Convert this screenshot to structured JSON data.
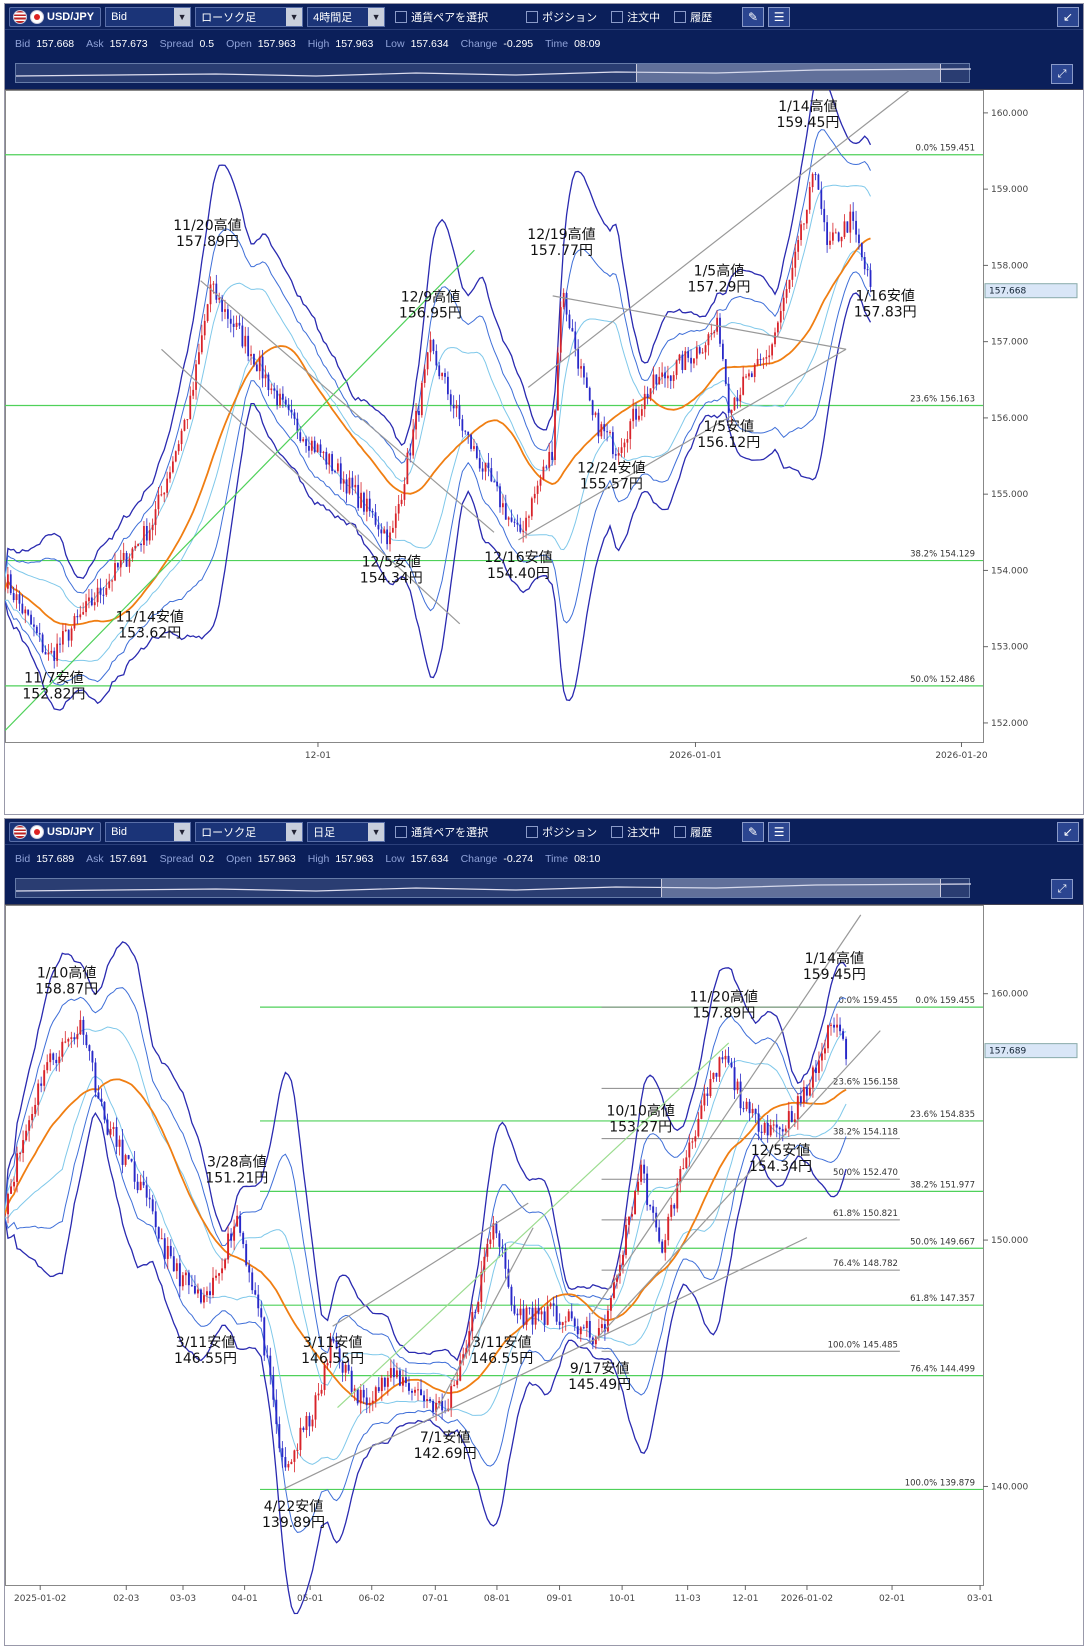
{
  "panels": [
    {
      "symbol": "USD/JPY",
      "price_type": "Bid",
      "candle_type": "ローソク足",
      "timeframe": "4時間足",
      "pair_select": "通貨ペアを選択",
      "checks": [
        "ポジション",
        "注文中",
        "履歴"
      ],
      "quote": {
        "bid_l": "Bid",
        "bid": "157.668",
        "ask_l": "Ask",
        "ask": "157.673",
        "spread_l": "Spread",
        "spread": "0.5",
        "open_l": "Open",
        "open": "157.963",
        "high_l": "High",
        "high": "157.963",
        "low_l": "Low",
        "low": "157.634",
        "change_l": "Change",
        "change": "-0.295",
        "time_l": "Time",
        "time": "08:09"
      },
      "chart_data": {
        "type": "candlestick",
        "ylim": [
          151.75,
          160.3
        ],
        "y_ticks": [
          "160.000",
          "159.000",
          "158.000",
          "157.000",
          "156.000",
          "155.000",
          "154.000",
          "153.000",
          "152.000"
        ],
        "x_ticks": [
          "12-01",
          "2026-01-01",
          "2026-01-20"
        ],
        "current_price": "157.668",
        "fib_levels": [
          {
            "label": "0.0%",
            "value": "159.451"
          },
          {
            "label": "23.6%",
            "value": "156.163"
          },
          {
            "label": "38.2%",
            "value": "154.129"
          },
          {
            "label": "50.0%",
            "value": "152.486"
          }
        ],
        "annotations": [
          {
            "l1": "1/14高値",
            "l2": "159.45円",
            "x": 0.821,
            "price": 159.45
          },
          {
            "l1": "11/20高値",
            "l2": "157.89円",
            "x": 0.207,
            "price": 157.89
          },
          {
            "l1": "12/19高値",
            "l2": "157.77円",
            "x": 0.569,
            "price": 157.77
          },
          {
            "l1": "1/5高値",
            "l2": "157.29円",
            "x": 0.73,
            "price": 157.29
          },
          {
            "l1": "12/9高値",
            "l2": "156.95円",
            "x": 0.435,
            "price": 156.95
          },
          {
            "l1": "1/16安値",
            "l2": "157.83円",
            "x": 0.9,
            "price": 157.83
          },
          {
            "l1": "1/5安値",
            "l2": "156.12円",
            "x": 0.74,
            "price": 156.12
          },
          {
            "l1": "12/24安値",
            "l2": "155.57円",
            "x": 0.62,
            "price": 155.57
          },
          {
            "l1": "12/16安値",
            "l2": "154.40円",
            "x": 0.525,
            "price": 154.4
          },
          {
            "l1": "12/5安値",
            "l2": "154.34円",
            "x": 0.395,
            "price": 154.34
          },
          {
            "l1": "11/14安値",
            "l2": "153.62円",
            "x": 0.148,
            "price": 153.62
          },
          {
            "l1": "11/7安値",
            "l2": "152.82円",
            "x": 0.05,
            "price": 152.82
          }
        ],
        "path": [
          [
            0,
            153.9
          ],
          [
            0.045,
            152.85
          ],
          [
            0.15,
            154.6
          ],
          [
            0.19,
            156.2
          ],
          [
            0.21,
            157.7
          ],
          [
            0.25,
            156.9
          ],
          [
            0.29,
            156.0
          ],
          [
            0.34,
            155.3
          ],
          [
            0.395,
            154.4
          ],
          [
            0.435,
            156.9
          ],
          [
            0.47,
            155.8
          ],
          [
            0.525,
            154.45
          ],
          [
            0.56,
            155.6
          ],
          [
            0.569,
            157.7
          ],
          [
            0.6,
            156.0
          ],
          [
            0.625,
            155.6
          ],
          [
            0.66,
            156.4
          ],
          [
            0.7,
            156.8
          ],
          [
            0.73,
            157.2
          ],
          [
            0.74,
            156.2
          ],
          [
            0.78,
            156.8
          ],
          [
            0.805,
            157.9
          ],
          [
            0.83,
            159.3
          ],
          [
            0.84,
            158.2
          ],
          [
            0.865,
            158.6
          ],
          [
            0.885,
            157.7
          ]
        ]
      }
    },
    {
      "symbol": "USD/JPY",
      "price_type": "Bid",
      "candle_type": "ローソク足",
      "timeframe": "日足",
      "pair_select": "通貨ペアを選択",
      "checks": [
        "ポジション",
        "注文中",
        "履歴"
      ],
      "quote": {
        "bid_l": "Bid",
        "bid": "157.689",
        "ask_l": "Ask",
        "ask": "157.691",
        "spread_l": "Spread",
        "spread": "0.2",
        "open_l": "Open",
        "open": "157.963",
        "high_l": "High",
        "high": "157.963",
        "low_l": "Low",
        "low": "157.634",
        "change_l": "Change",
        "change": "-0.274",
        "time_l": "Time",
        "time": "08:10"
      },
      "chart_data": {
        "type": "candlestick",
        "ylim": [
          136.0,
          163.6
        ],
        "y_ticks": [
          "160.000",
          "150.000",
          "140.000"
        ],
        "x_ticks": [
          "2025-01-02",
          "02-03",
          "03-03",
          "04-01",
          "05-01",
          "06-02",
          "07-01",
          "08-01",
          "09-01",
          "10-01",
          "11-03",
          "12-01",
          "2026-01-02",
          "02-01",
          "03-01"
        ],
        "current_price": "157.689",
        "fib_levels": [
          {
            "label": "0.0%",
            "value": "159.455"
          },
          {
            "label": "23.6%",
            "value": "154.835"
          },
          {
            "label": "38.2%",
            "value": "151.977"
          },
          {
            "label": "50.0%",
            "value": "149.667"
          },
          {
            "label": "61.8%",
            "value": "147.357"
          },
          {
            "label": "76.4%",
            "value": "144.499"
          },
          {
            "label": "100.0%",
            "value": "139.879"
          }
        ],
        "fib_levels_short": [
          {
            "label": "0.0%",
            "value": "159.455"
          },
          {
            "label": "23.6%",
            "value": "156.158"
          },
          {
            "label": "38.2%",
            "value": "154.118"
          },
          {
            "label": "50.0%",
            "value": "152.470"
          },
          {
            "label": "61.8%",
            "value": "150.821"
          },
          {
            "label": "76.4%",
            "value": "148.782"
          },
          {
            "label": "100.0%",
            "value": "145.485"
          }
        ],
        "annotations": [
          {
            "l1": "1/10高値",
            "l2": "158.87円",
            "x": 0.063,
            "price": 158.87
          },
          {
            "l1": "3/28高値",
            "l2": "151.21円",
            "x": 0.237,
            "price": 151.21
          },
          {
            "l1": "3/11安値",
            "l2": "146.55円",
            "x": 0.205,
            "price": 146.55
          },
          {
            "l1": "3/11安値",
            "l2": "146.55円",
            "x": 0.335,
            "price": 146.55
          },
          {
            "l1": "3/11安値",
            "l2": "146.55円",
            "x": 0.508,
            "price": 146.55
          },
          {
            "l1": "4/22安値",
            "l2": "139.89円",
            "x": 0.295,
            "price": 139.89
          },
          {
            "l1": "7/1安値",
            "l2": "142.69円",
            "x": 0.45,
            "price": 142.69
          },
          {
            "l1": "9/17安値",
            "l2": "145.49円",
            "x": 0.608,
            "price": 145.49
          },
          {
            "l1": "10/10高値",
            "l2": "153.27円",
            "x": 0.65,
            "price": 153.27
          },
          {
            "l1": "11/20高値",
            "l2": "157.89円",
            "x": 0.735,
            "price": 157.89
          },
          {
            "l1": "12/5安値",
            "l2": "154.34円",
            "x": 0.793,
            "price": 154.34
          },
          {
            "l1": "1/14高値",
            "l2": "159.45円",
            "x": 0.848,
            "price": 159.45
          }
        ],
        "path": [
          [
            0,
            151.5
          ],
          [
            0.04,
            157.0
          ],
          [
            0.08,
            158.8
          ],
          [
            0.1,
            155.0
          ],
          [
            0.14,
            152.0
          ],
          [
            0.17,
            149.0
          ],
          [
            0.205,
            147.3
          ],
          [
            0.237,
            151.0
          ],
          [
            0.26,
            147.0
          ],
          [
            0.285,
            140.5
          ],
          [
            0.32,
            143.5
          ],
          [
            0.335,
            146.0
          ],
          [
            0.36,
            143.5
          ],
          [
            0.4,
            144.5
          ],
          [
            0.45,
            143.0
          ],
          [
            0.48,
            147.0
          ],
          [
            0.5,
            151.0
          ],
          [
            0.52,
            147.0
          ],
          [
            0.56,
            147.0
          ],
          [
            0.608,
            146.0
          ],
          [
            0.62,
            147.5
          ],
          [
            0.65,
            153.0
          ],
          [
            0.67,
            149.5
          ],
          [
            0.7,
            154.0
          ],
          [
            0.735,
            157.5
          ],
          [
            0.76,
            155.0
          ],
          [
            0.793,
            154.5
          ],
          [
            0.82,
            156.0
          ],
          [
            0.848,
            159.0
          ],
          [
            0.86,
            157.7
          ]
        ]
      }
    }
  ]
}
